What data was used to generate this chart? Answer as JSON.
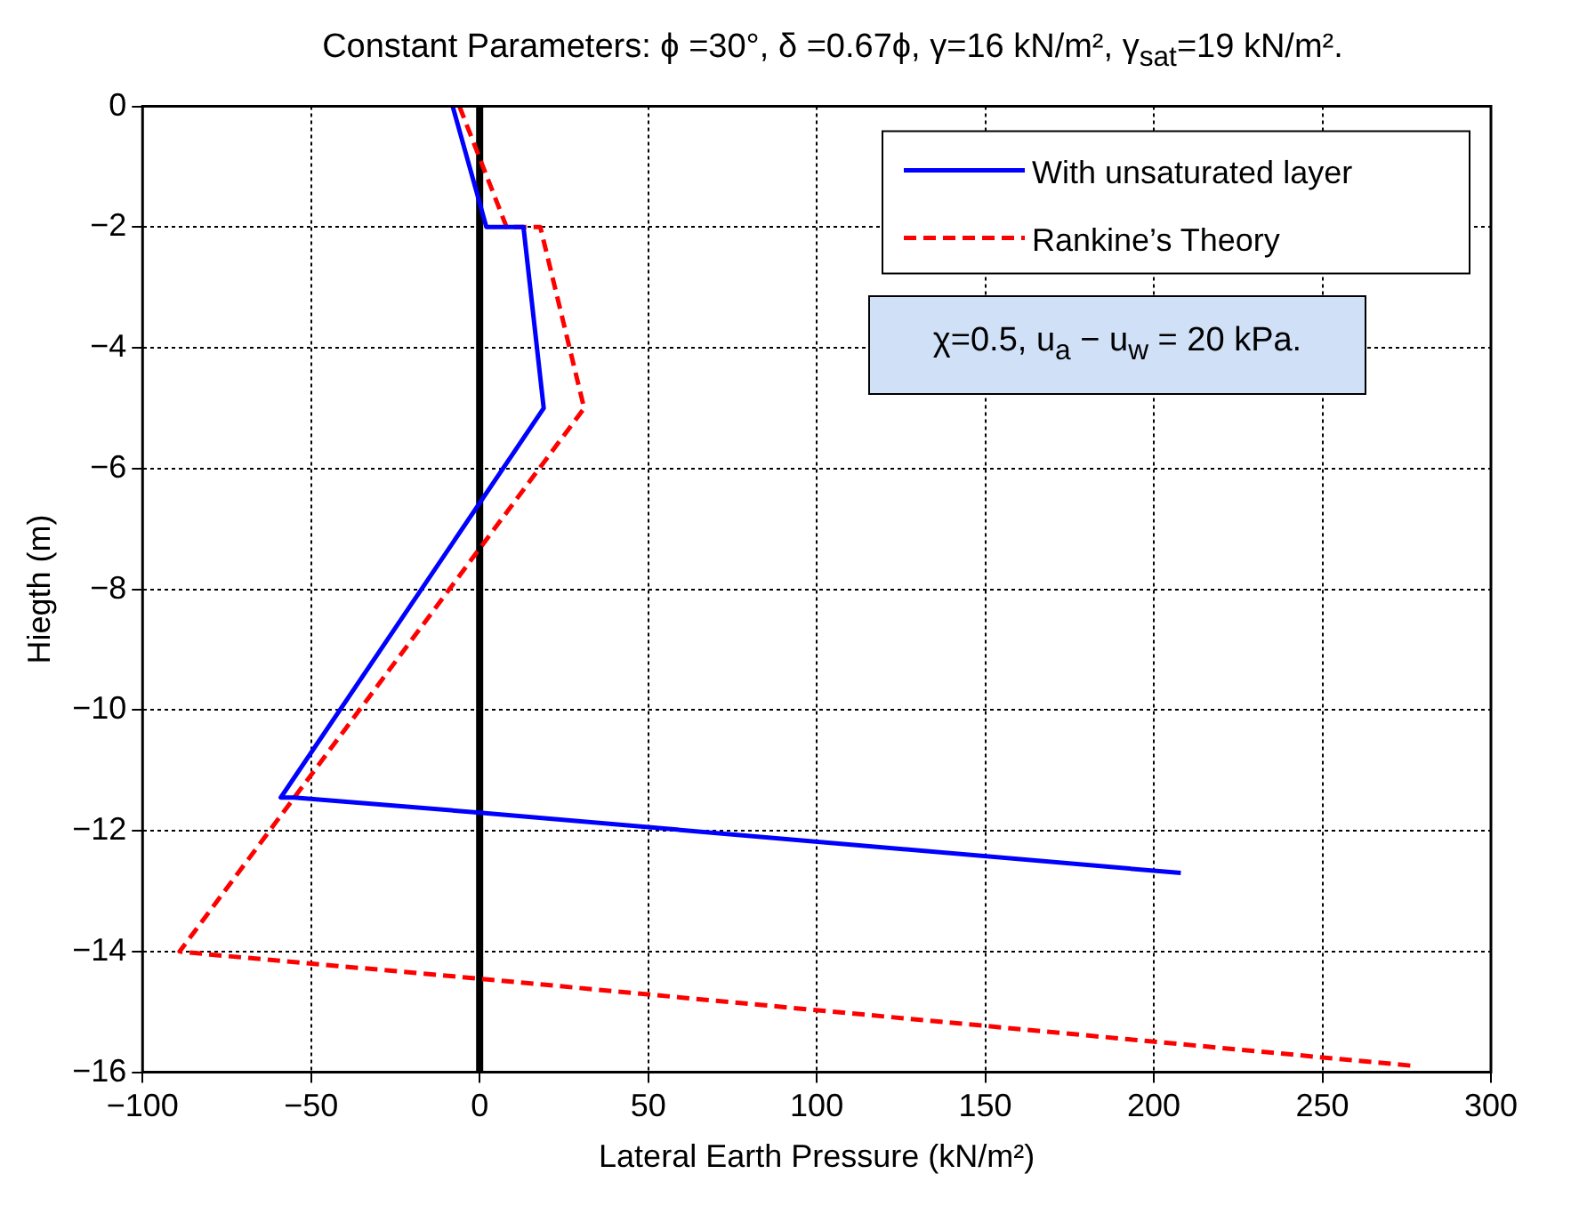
{
  "chart_data": {
    "type": "line",
    "title": "Constant Parameters: ϕ =30°, δ =0.67ϕ,  γ=16 kN/m², γ$_{sat}$=19 kN/m².",
    "xlabel": "Lateral Earth Pressure (kN/m²)",
    "ylabel": "Hiegth (m)",
    "series": [
      {
        "name": "With unsaturated layer",
        "color": "#0000ff",
        "line_style": "solid",
        "x": [
          -8,
          2,
          13,
          19,
          -59,
          -55,
          0,
          208
        ],
        "values": [
          0,
          -2,
          -2,
          -5,
          -11.45,
          -11.45,
          -11.7,
          -12.7
        ]
      },
      {
        "name": "Rankine’s Theory",
        "color": "#ff0000",
        "line_style": "dashed",
        "x": [
          -6,
          8,
          18,
          31,
          -89,
          -80,
          0,
          278
        ],
        "values": [
          0,
          -2,
          -2,
          -5,
          -14,
          -14.05,
          -14.45,
          -15.9
        ]
      }
    ],
    "ref_lines": [
      {
        "axis": "x",
        "value": 0,
        "color": "#000000"
      }
    ],
    "annotations": [
      "χ=0.5, u$_{a}$ − u$_{w}$ = 20 kPa."
    ],
    "xlim": [
      -100,
      300
    ],
    "xticks": [
      -100,
      -50,
      0,
      50,
      100,
      150,
      200,
      250,
      300
    ],
    "ylim": [
      -16,
      0
    ],
    "yticks": [
      -16,
      -14,
      -12,
      -10,
      -8,
      -6,
      -4,
      -2,
      0
    ],
    "grid": true,
    "legend": "top right",
    "marker": "none"
  }
}
